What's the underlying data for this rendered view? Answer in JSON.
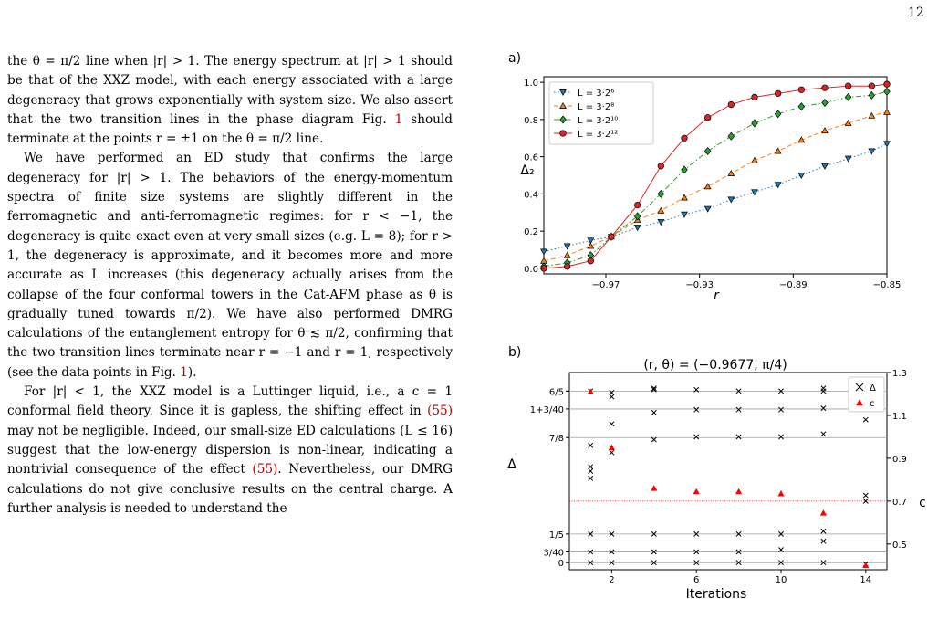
{
  "page_number": "12",
  "text": {
    "p1": [
      "the θ = π/2 line when |r| > 1. The energy spectrum at |r| > 1 should be that of the XXZ model, with each energy associated with a large degeneracy that grows exponentially with system size. We also assert that the two transition lines in the phase diagram Fig. ",
      "1",
      " should terminate at the points r = ±1 on the θ = π/2 line."
    ],
    "p2": [
      "We have performed an ED study that confirms the large degeneracy for |r| > 1. The behaviors of the energy-momentum spectra of finite size systems are slightly different in the ferromagnetic and anti-ferromagnetic regimes: for r < −1, the degeneracy is quite exact even at very small sizes (e.g. L = 8); for r > 1, the degeneracy is approximate, and it becomes more and more accurate as L increases (this degeneracy actually arises from the collapse of the four conformal towers in the Cat-AFM phase as θ is gradually tuned towards π/2). We have also performed DMRG calculations of the entanglement entropy for θ ≲ π/2, confirming that the two transition lines terminate near r = −1 and r = 1, respectively (see the data points in Fig. ",
      "1",
      ")."
    ],
    "p3": [
      "For |r| < 1, the XXZ model is a Luttinger liquid, i.e., a c = 1 conformal field theory. Since it is gapless, the shifting effect in ",
      "(55)",
      " may not be negligible. Indeed, our small-size ED calculations (L ≤ 16) suggest that the low-energy dispersion is non-linear, indicating a nontrivial consequence of the effect ",
      "(55)",
      ". Nevertheless, our DMRG calculations do not give conclusive results on the central charge. A further analysis is needed to understand the"
    ]
  },
  "chart_data": [
    {
      "panel_label": "a)",
      "type": "line",
      "title": "",
      "xlabel": "r",
      "ylabel": "Δ₂",
      "xlim": [
        -0.9965,
        -0.85
      ],
      "ylim": [
        -0.03,
        1.03
      ],
      "xticks": [
        -0.97,
        -0.93,
        -0.89,
        -0.85
      ],
      "xtick_labels": [
        "−0.97",
        "−0.93",
        "−0.89",
        "−0.85"
      ],
      "yticks": [
        0.0,
        0.2,
        0.4,
        0.6,
        0.8,
        1.0
      ],
      "ytick_labels": [
        "0.0",
        "0.2",
        "0.4",
        "0.6",
        "0.8",
        "1.0"
      ],
      "legend_position": "upper-left",
      "x": [
        -0.9965,
        -0.9865,
        -0.9765,
        -0.9677,
        -0.9565,
        -0.9465,
        -0.9365,
        -0.9265,
        -0.9165,
        -0.9065,
        -0.8965,
        -0.8865,
        -0.8765,
        -0.8665,
        -0.8565,
        -0.85
      ],
      "series": [
        {
          "name": "L = 3·2⁶",
          "marker": "triangle-down",
          "color": "#1f77b4",
          "dash": "dotted",
          "y": [
            0.09,
            0.12,
            0.15,
            0.17,
            0.22,
            0.25,
            0.29,
            0.32,
            0.37,
            0.41,
            0.45,
            0.5,
            0.55,
            0.59,
            0.63,
            0.67
          ]
        },
        {
          "name": "L = 3·2⁸",
          "marker": "triangle-up",
          "color": "#ff7f0e",
          "dash": "dashed",
          "y": [
            0.04,
            0.07,
            0.12,
            0.17,
            0.26,
            0.31,
            0.38,
            0.44,
            0.51,
            0.58,
            0.63,
            0.69,
            0.74,
            0.78,
            0.82,
            0.84
          ]
        },
        {
          "name": "L = 3·2¹⁰",
          "marker": "diamond",
          "color": "#2ca02c",
          "dash": "dashdot",
          "y": [
            0.01,
            0.03,
            0.07,
            0.17,
            0.28,
            0.4,
            0.53,
            0.63,
            0.71,
            0.78,
            0.83,
            0.87,
            0.89,
            0.92,
            0.93,
            0.95
          ]
        },
        {
          "name": "L = 3·2¹²",
          "marker": "circle",
          "color": "#d62728",
          "dash": "solid",
          "y": [
            0.0,
            0.01,
            0.04,
            0.17,
            0.34,
            0.55,
            0.7,
            0.81,
            0.88,
            0.92,
            0.94,
            0.96,
            0.97,
            0.98,
            0.98,
            0.99
          ]
        }
      ]
    },
    {
      "panel_label": "b)",
      "type": "scatter",
      "title": "(r, θ) = (−0.9677, π/4)",
      "xlabel": "Iterations",
      "ylabel_left": "Δ",
      "ylabel_right": "c",
      "xlim": [
        0,
        15
      ],
      "xticks": [
        2,
        6,
        10,
        14
      ],
      "xtick_labels": [
        "2",
        "6",
        "10",
        "14"
      ],
      "left_ylim": [
        -0.05,
        1.33
      ],
      "left_ytick_values": [
        0,
        0.075,
        0.2,
        0.875,
        1.075,
        1.2
      ],
      "left_ytick_labels": [
        "0",
        "3/40",
        "1/5",
        "7/8",
        "1+3/40",
        "6/5"
      ],
      "right_ylim": [
        0.38,
        1.3
      ],
      "right_yticks": [
        0.5,
        0.7,
        0.9,
        1.1,
        1.3
      ],
      "right_ytick_labels": [
        "0.5",
        "0.7",
        "0.9",
        "1.1",
        "1.3"
      ],
      "reference_c": 0.7,
      "legend_position": "upper-right",
      "series": [
        {
          "name": "Δ",
          "marker": "x",
          "color": "#000000",
          "points": [
            [
              1,
              0
            ],
            [
              1,
              0.075
            ],
            [
              1,
              0.2
            ],
            [
              1,
              0.59
            ],
            [
              1,
              0.64
            ],
            [
              1,
              0.67
            ],
            [
              1,
              0.82
            ],
            [
              1,
              1.2
            ],
            [
              2,
              0
            ],
            [
              2,
              0.075
            ],
            [
              2,
              0.2
            ],
            [
              2,
              0.77
            ],
            [
              2,
              0.97
            ],
            [
              2,
              1.16
            ],
            [
              2,
              1.19
            ],
            [
              4,
              0
            ],
            [
              4,
              0.075
            ],
            [
              4,
              0.2
            ],
            [
              4,
              0.86
            ],
            [
              4,
              1.05
            ],
            [
              4,
              1.21
            ],
            [
              4,
              1.22
            ],
            [
              6,
              0
            ],
            [
              6,
              0.075
            ],
            [
              6,
              0.2
            ],
            [
              6,
              0.88
            ],
            [
              6,
              1.07
            ],
            [
              6,
              1.21
            ],
            [
              8,
              0
            ],
            [
              8,
              0.075
            ],
            [
              8,
              0.2
            ],
            [
              8,
              0.88
            ],
            [
              8,
              1.07
            ],
            [
              8,
              1.2
            ],
            [
              10,
              0
            ],
            [
              10,
              0.09
            ],
            [
              10,
              0.2
            ],
            [
              10,
              0.88
            ],
            [
              10,
              1.07
            ],
            [
              10,
              1.2
            ],
            [
              12,
              0
            ],
            [
              12,
              0.15
            ],
            [
              12,
              0.22
            ],
            [
              12,
              0.9
            ],
            [
              12,
              1.08
            ],
            [
              12,
              1.2
            ],
            [
              12,
              1.22
            ],
            [
              14,
              -0.01
            ],
            [
              14,
              0.43
            ],
            [
              14,
              0.47
            ],
            [
              14,
              1.0
            ],
            [
              14,
              1.23
            ]
          ]
        },
        {
          "name": "c",
          "marker": "triangle",
          "color": "#ff0000",
          "points": [
            [
              1,
              1.21
            ],
            [
              2,
              0.95
            ],
            [
              4,
              0.76
            ],
            [
              6,
              0.745
            ],
            [
              8,
              0.745
            ],
            [
              10,
              0.735
            ],
            [
              12,
              0.645
            ],
            [
              14,
              0.4
            ]
          ]
        }
      ]
    }
  ]
}
